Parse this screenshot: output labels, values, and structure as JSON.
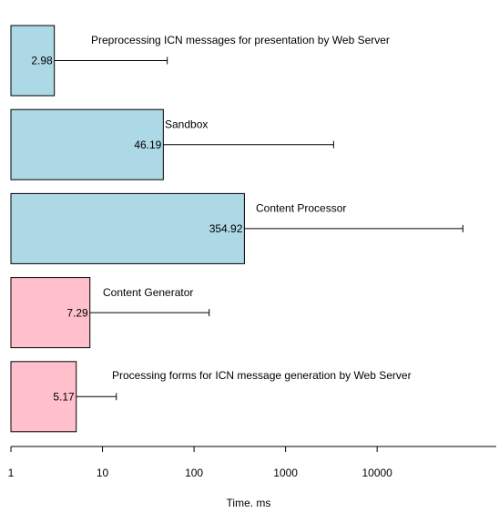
{
  "chart_data": {
    "type": "bar",
    "orientation": "horizontal",
    "log_x": true,
    "xlabel": "Time. ms",
    "categories": [
      "Preprocessing ICN messages for presentation by Web Server",
      "Sandbox",
      "Content Processor",
      "Content Generator",
      "Processing forms for ICN message generation by Web Server"
    ],
    "values": [
      2.98,
      46.19,
      354.92,
      7.29,
      5.17
    ],
    "errors": [
      48,
      3300,
      86000,
      139,
      9
    ],
    "colors": [
      "#add8e6",
      "#add8e6",
      "#add8e6",
      "#ffc0cb",
      "#ffc0cb"
    ],
    "xlim": [
      1,
      200000
    ],
    "xticks": [
      1,
      10,
      100,
      1000,
      10000
    ]
  }
}
